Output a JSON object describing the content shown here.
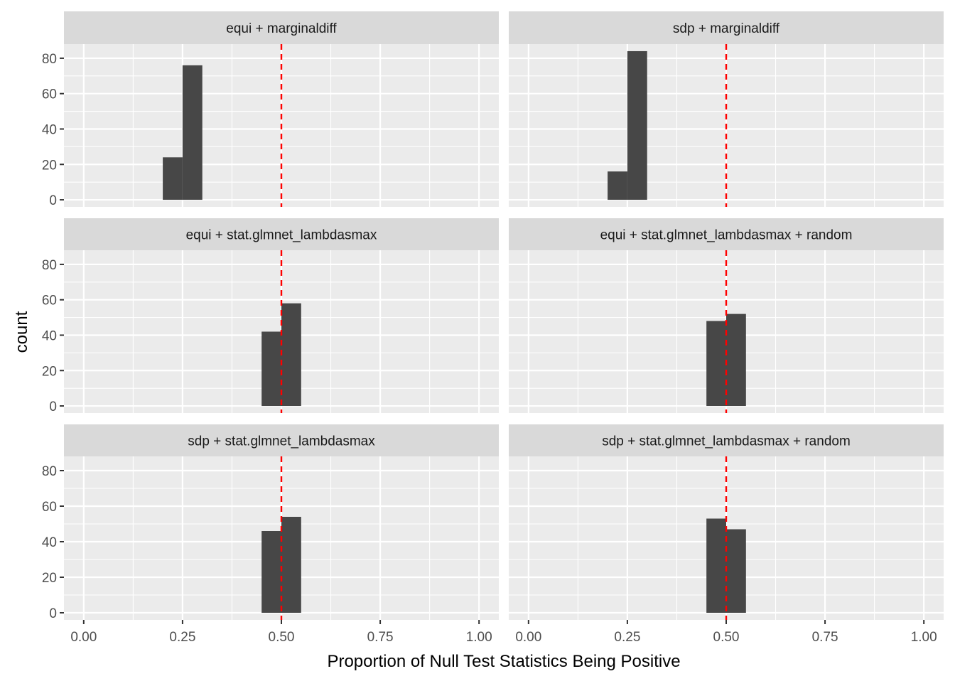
{
  "chart_data": {
    "type": "bar",
    "subtype": "faceted-histogram",
    "title": "",
    "xlabel": "Proportion of Null Test Statistics Being Positive",
    "ylabel": "count",
    "xlim": [
      -0.05,
      1.05
    ],
    "ylim": [
      -4,
      88
    ],
    "x_ticks": [
      0.0,
      0.25,
      0.5,
      0.75,
      1.0
    ],
    "x_tick_labels": [
      "0.00",
      "0.25",
      "0.50",
      "0.75",
      "1.00"
    ],
    "y_ticks": [
      0,
      20,
      40,
      60,
      80
    ],
    "y_tick_labels": [
      "0",
      "20",
      "40",
      "60",
      "80"
    ],
    "grid": true,
    "reference_line": {
      "x": 0.5,
      "color": "#FF0000",
      "style": "dashed"
    },
    "bar_color": "#474747",
    "bin_width": 0.05,
    "facets": [
      {
        "label": "equi + marginaldiff",
        "bins": [
          {
            "x0": 0.2,
            "x1": 0.25,
            "count": 24
          },
          {
            "x0": 0.25,
            "x1": 0.3,
            "count": 76
          }
        ]
      },
      {
        "label": "sdp + marginaldiff",
        "bins": [
          {
            "x0": 0.2,
            "x1": 0.25,
            "count": 16
          },
          {
            "x0": 0.25,
            "x1": 0.3,
            "count": 84
          }
        ]
      },
      {
        "label": "equi + stat.glmnet_lambdasmax",
        "bins": [
          {
            "x0": 0.45,
            "x1": 0.5,
            "count": 42
          },
          {
            "x0": 0.5,
            "x1": 0.55,
            "count": 58
          }
        ]
      },
      {
        "label": "equi + stat.glmnet_lambdasmax + random",
        "bins": [
          {
            "x0": 0.45,
            "x1": 0.5,
            "count": 48
          },
          {
            "x0": 0.5,
            "x1": 0.55,
            "count": 52
          }
        ]
      },
      {
        "label": "sdp + stat.glmnet_lambdasmax",
        "bins": [
          {
            "x0": 0.45,
            "x1": 0.5,
            "count": 46
          },
          {
            "x0": 0.5,
            "x1": 0.55,
            "count": 54
          }
        ]
      },
      {
        "label": "sdp + stat.glmnet_lambdasmax + random",
        "bins": [
          {
            "x0": 0.45,
            "x1": 0.5,
            "count": 53
          },
          {
            "x0": 0.5,
            "x1": 0.55,
            "count": 47
          }
        ]
      }
    ]
  }
}
